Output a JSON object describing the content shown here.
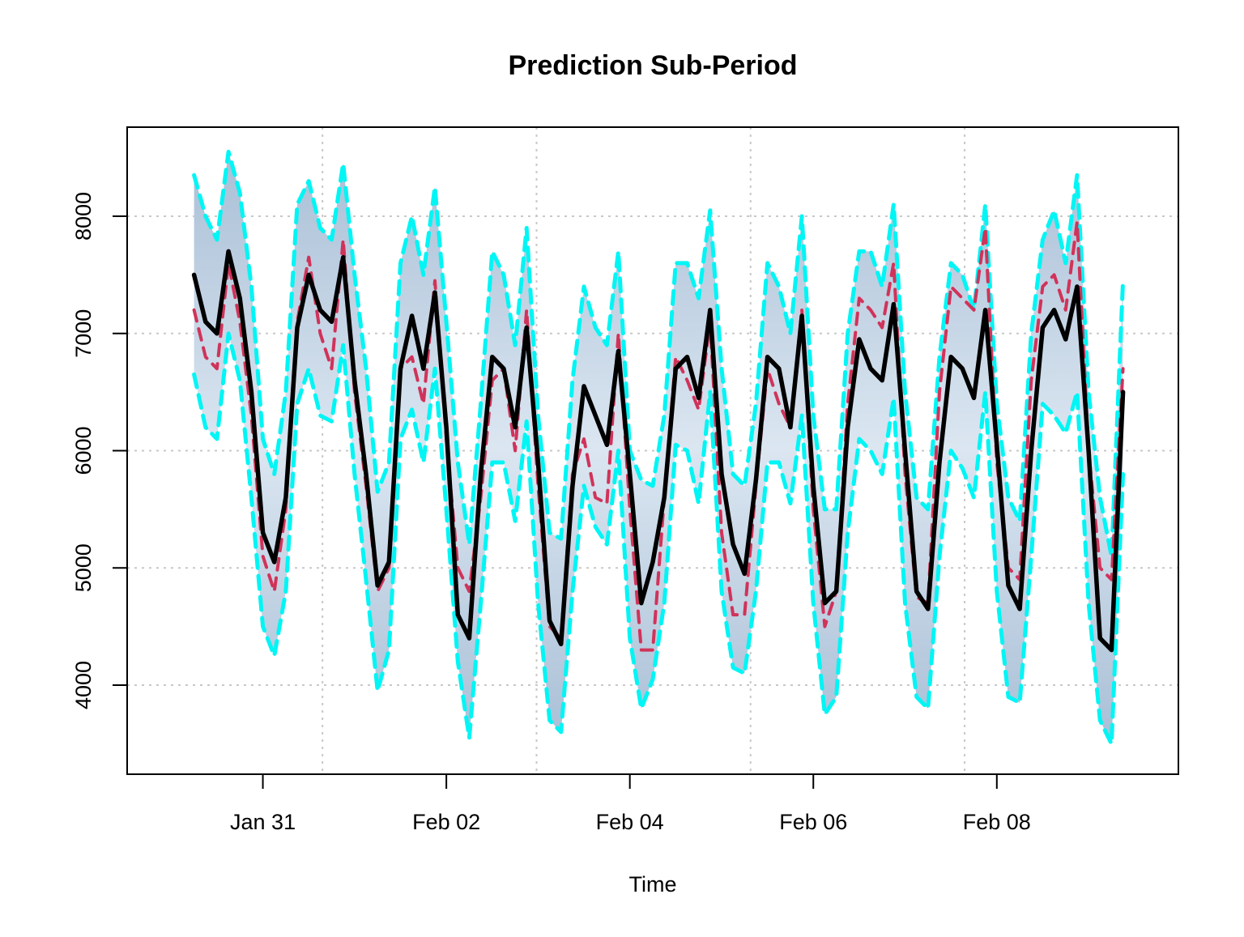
{
  "chart_data": {
    "type": "line",
    "title": "Prediction Sub-Period",
    "xlabel": "Time",
    "ylabel": "",
    "x_tick_labels": [
      "Jan 31",
      "Feb 02",
      "Feb 04",
      "Feb 06",
      "Feb 08"
    ],
    "x_tick_dates": [
      "2016-01-31",
      "2016-02-02",
      "2016-02-04",
      "2016-02-06",
      "2016-02-08"
    ],
    "y_ticks": [
      4000,
      5000,
      6000,
      7000,
      8000
    ],
    "ylim": [
      3240,
      8760
    ],
    "xlim": [
      "2016-01-29 12:30",
      "2016-02-09 23:30"
    ],
    "grid": true,
    "colors": {
      "actual": "#000000",
      "predicted": "#d0335a",
      "bounds": "#00f5f5",
      "band_outer": "#a9bfd6",
      "band_inner": "#dbe6f1",
      "grid": "#c8c8c8"
    },
    "series": [
      {
        "role": "actual",
        "style": "solid",
        "x": [
          "2016-01-30 06:00",
          "2016-01-30 09:00",
          "2016-01-30 12:00",
          "2016-01-30 15:00",
          "2016-01-30 18:00",
          "2016-01-30 21:00",
          "2016-01-31 00:00",
          "2016-01-31 03:00",
          "2016-01-31 06:00",
          "2016-01-31 09:00",
          "2016-01-31 12:00",
          "2016-01-31 15:00",
          "2016-01-31 18:00",
          "2016-01-31 21:00",
          "2016-02-01 00:00",
          "2016-02-01 03:00",
          "2016-02-01 06:00",
          "2016-02-01 09:00",
          "2016-02-01 12:00",
          "2016-02-01 15:00",
          "2016-02-01 18:00",
          "2016-02-01 21:00",
          "2016-02-02 00:00",
          "2016-02-02 03:00",
          "2016-02-02 06:00",
          "2016-02-02 09:00",
          "2016-02-02 12:00",
          "2016-02-02 15:00",
          "2016-02-02 18:00",
          "2016-02-02 21:00",
          "2016-02-03 00:00",
          "2016-02-03 03:00",
          "2016-02-03 06:00",
          "2016-02-03 09:00",
          "2016-02-03 12:00",
          "2016-02-03 15:00",
          "2016-02-03 18:00",
          "2016-02-03 21:00",
          "2016-02-04 00:00",
          "2016-02-04 03:00",
          "2016-02-04 06:00",
          "2016-02-04 09:00",
          "2016-02-04 12:00",
          "2016-02-04 15:00",
          "2016-02-04 18:00",
          "2016-02-04 21:00",
          "2016-02-05 00:00",
          "2016-02-05 03:00",
          "2016-02-05 06:00",
          "2016-02-05 09:00",
          "2016-02-05 12:00",
          "2016-02-05 15:00",
          "2016-02-05 18:00",
          "2016-02-05 21:00",
          "2016-02-06 00:00",
          "2016-02-06 03:00",
          "2016-02-06 06:00",
          "2016-02-06 09:00",
          "2016-02-06 12:00",
          "2016-02-06 15:00",
          "2016-02-06 18:00",
          "2016-02-06 21:00",
          "2016-02-07 00:00",
          "2016-02-07 03:00",
          "2016-02-07 06:00",
          "2016-02-07 09:00",
          "2016-02-07 12:00",
          "2016-02-07 15:00",
          "2016-02-07 18:00",
          "2016-02-07 21:00",
          "2016-02-08 00:00",
          "2016-02-08 03:00",
          "2016-02-08 06:00",
          "2016-02-08 09:00",
          "2016-02-08 12:00",
          "2016-02-08 15:00",
          "2016-02-08 18:00",
          "2016-02-08 21:00",
          "2016-02-09 00:00",
          "2016-02-09 03:00",
          "2016-02-09 06:00",
          "2016-02-09 09:00"
        ],
        "y": [
          7500,
          7100,
          7000,
          7700,
          7300,
          6500,
          5300,
          5050,
          5600,
          7050,
          7500,
          7200,
          7100,
          7650,
          6600,
          5800,
          4850,
          5050,
          6700,
          7150,
          6700,
          7350,
          6200,
          4600,
          4400,
          5800,
          6800,
          6700,
          6200,
          7050,
          5900,
          4550,
          4350,
          5700,
          6550,
          6300,
          6050,
          6850,
          5800,
          4700,
          5050,
          5600,
          6700,
          6800,
          6450,
          7200,
          5800,
          5200,
          4950,
          5750,
          6800,
          6700,
          6200,
          7150,
          5700,
          4700,
          4800,
          6200,
          6950,
          6700,
          6600,
          7250,
          6000,
          4800,
          4650,
          5900,
          6800,
          6700,
          6450,
          7200,
          6050,
          4850,
          4650,
          6000,
          7050,
          7200,
          6950,
          7400,
          6000,
          4400,
          4300,
          6500
        ]
      },
      {
        "role": "predicted",
        "style": "dashed",
        "x": [
          "2016-01-30 06:00",
          "2016-01-30 09:00",
          "2016-01-30 12:00",
          "2016-01-30 15:00",
          "2016-01-30 18:00",
          "2016-01-30 21:00",
          "2016-01-31 00:00",
          "2016-01-31 03:00",
          "2016-01-31 06:00",
          "2016-01-31 09:00",
          "2016-01-31 12:00",
          "2016-01-31 15:00",
          "2016-01-31 18:00",
          "2016-01-31 21:00",
          "2016-02-01 00:00",
          "2016-02-01 03:00",
          "2016-02-01 06:00",
          "2016-02-01 09:00",
          "2016-02-01 12:00",
          "2016-02-01 15:00",
          "2016-02-01 18:00",
          "2016-02-01 21:00",
          "2016-02-02 00:00",
          "2016-02-02 03:00",
          "2016-02-02 06:00",
          "2016-02-02 09:00",
          "2016-02-02 12:00",
          "2016-02-02 15:00",
          "2016-02-02 18:00",
          "2016-02-02 21:00",
          "2016-02-03 00:00",
          "2016-02-03 03:00",
          "2016-02-03 06:00",
          "2016-02-03 09:00",
          "2016-02-03 12:00",
          "2016-02-03 15:00",
          "2016-02-03 18:00",
          "2016-02-03 21:00",
          "2016-02-04 00:00",
          "2016-02-04 03:00",
          "2016-02-04 06:00",
          "2016-02-04 09:00",
          "2016-02-04 12:00",
          "2016-02-04 15:00",
          "2016-02-04 18:00",
          "2016-02-04 21:00",
          "2016-02-05 00:00",
          "2016-02-05 03:00",
          "2016-02-05 06:00",
          "2016-02-05 09:00",
          "2016-02-05 12:00",
          "2016-02-05 15:00",
          "2016-02-05 18:00",
          "2016-02-05 21:00",
          "2016-02-06 00:00",
          "2016-02-06 03:00",
          "2016-02-06 06:00",
          "2016-02-06 09:00",
          "2016-02-06 12:00",
          "2016-02-06 15:00",
          "2016-02-06 18:00",
          "2016-02-06 21:00",
          "2016-02-07 00:00",
          "2016-02-07 03:00",
          "2016-02-07 06:00",
          "2016-02-07 09:00",
          "2016-02-07 12:00",
          "2016-02-07 15:00",
          "2016-02-07 18:00",
          "2016-02-07 21:00",
          "2016-02-08 00:00",
          "2016-02-08 03:00",
          "2016-02-08 06:00",
          "2016-02-08 09:00",
          "2016-02-08 12:00",
          "2016-02-08 15:00",
          "2016-02-08 18:00",
          "2016-02-08 21:00",
          "2016-02-09 00:00",
          "2016-02-09 03:00",
          "2016-02-09 06:00",
          "2016-02-09 09:00"
        ],
        "y": [
          7200,
          6800,
          6700,
          7600,
          7100,
          6300,
          5100,
          4800,
          5500,
          7100,
          7650,
          7000,
          6700,
          7800,
          6500,
          5700,
          4800,
          5000,
          6700,
          6800,
          6400,
          7450,
          6100,
          5000,
          4800,
          5600,
          6600,
          6700,
          6000,
          7200,
          5700,
          4500,
          4400,
          5800,
          6100,
          5600,
          5550,
          7000,
          5500,
          4300,
          4300,
          5600,
          6800,
          6600,
          6350,
          7100,
          5300,
          4600,
          4600,
          5700,
          6700,
          6400,
          6200,
          7200,
          5500,
          4500,
          4800,
          6400,
          7300,
          7200,
          7050,
          7600,
          5800,
          4750,
          4700,
          6500,
          7400,
          7300,
          7200,
          7900,
          5900,
          5000,
          4900,
          6600,
          7400,
          7500,
          7200,
          7950,
          6000,
          5000,
          4900,
          6700
        ]
      },
      {
        "role": "upper_bound",
        "style": "dashed",
        "x": [
          "2016-01-30 06:00",
          "2016-01-30 09:00",
          "2016-01-30 12:00",
          "2016-01-30 15:00",
          "2016-01-30 18:00",
          "2016-01-30 21:00",
          "2016-01-31 00:00",
          "2016-01-31 03:00",
          "2016-01-31 06:00",
          "2016-01-31 09:00",
          "2016-01-31 12:00",
          "2016-01-31 15:00",
          "2016-01-31 18:00",
          "2016-01-31 21:00",
          "2016-02-01 00:00",
          "2016-02-01 03:00",
          "2016-02-01 06:00",
          "2016-02-01 09:00",
          "2016-02-01 12:00",
          "2016-02-01 15:00",
          "2016-02-01 18:00",
          "2016-02-01 21:00",
          "2016-02-02 00:00",
          "2016-02-02 03:00",
          "2016-02-02 06:00",
          "2016-02-02 09:00",
          "2016-02-02 12:00",
          "2016-02-02 15:00",
          "2016-02-02 18:00",
          "2016-02-02 21:00",
          "2016-02-03 00:00",
          "2016-02-03 03:00",
          "2016-02-03 06:00",
          "2016-02-03 09:00",
          "2016-02-03 12:00",
          "2016-02-03 15:00",
          "2016-02-03 18:00",
          "2016-02-03 21:00",
          "2016-02-04 00:00",
          "2016-02-04 03:00",
          "2016-02-04 06:00",
          "2016-02-04 09:00",
          "2016-02-04 12:00",
          "2016-02-04 15:00",
          "2016-02-04 18:00",
          "2016-02-04 21:00",
          "2016-02-05 00:00",
          "2016-02-05 03:00",
          "2016-02-05 06:00",
          "2016-02-05 09:00",
          "2016-02-05 12:00",
          "2016-02-05 15:00",
          "2016-02-05 18:00",
          "2016-02-05 21:00",
          "2016-02-06 00:00",
          "2016-02-06 03:00",
          "2016-02-06 06:00",
          "2016-02-06 09:00",
          "2016-02-06 12:00",
          "2016-02-06 15:00",
          "2016-02-06 18:00",
          "2016-02-06 21:00",
          "2016-02-07 00:00",
          "2016-02-07 03:00",
          "2016-02-07 06:00",
          "2016-02-07 09:00",
          "2016-02-07 12:00",
          "2016-02-07 15:00",
          "2016-02-07 18:00",
          "2016-02-07 21:00",
          "2016-02-08 00:00",
          "2016-02-08 03:00",
          "2016-02-08 06:00",
          "2016-02-08 09:00",
          "2016-02-08 12:00",
          "2016-02-08 15:00",
          "2016-02-08 18:00",
          "2016-02-08 21:00",
          "2016-02-09 00:00",
          "2016-02-09 03:00",
          "2016-02-09 06:00",
          "2016-02-09 09:00"
        ],
        "y": [
          8350,
          8000,
          7800,
          8550,
          8200,
          7400,
          6100,
          5800,
          6500,
          8100,
          8300,
          7900,
          7800,
          8450,
          7500,
          6700,
          5650,
          5900,
          7600,
          8000,
          7500,
          8250,
          7100,
          5900,
          5200,
          6400,
          7700,
          7500,
          6900,
          7900,
          6300,
          5300,
          5250,
          6600,
          7400,
          7050,
          6900,
          7700,
          6000,
          5750,
          5700,
          6300,
          7600,
          7600,
          7300,
          8050,
          6700,
          5800,
          5700,
          6400,
          7600,
          7400,
          7000,
          8000,
          6300,
          5500,
          5500,
          7000,
          7700,
          7700,
          7400,
          8100,
          6500,
          5600,
          5500,
          6800,
          7600,
          7500,
          7200,
          8100,
          6400,
          5600,
          5400,
          7000,
          7800,
          8050,
          7600,
          8350,
          6500,
          5600,
          5100,
          7450
        ]
      },
      {
        "role": "lower_bound",
        "style": "dashed",
        "x": [
          "2016-01-30 06:00",
          "2016-01-30 09:00",
          "2016-01-30 12:00",
          "2016-01-30 15:00",
          "2016-01-30 18:00",
          "2016-01-30 21:00",
          "2016-01-31 00:00",
          "2016-01-31 03:00",
          "2016-01-31 06:00",
          "2016-01-31 09:00",
          "2016-01-31 12:00",
          "2016-01-31 15:00",
          "2016-01-31 18:00",
          "2016-01-31 21:00",
          "2016-02-01 00:00",
          "2016-02-01 03:00",
          "2016-02-01 06:00",
          "2016-02-01 09:00",
          "2016-02-01 12:00",
          "2016-02-01 15:00",
          "2016-02-01 18:00",
          "2016-02-01 21:00",
          "2016-02-02 00:00",
          "2016-02-02 03:00",
          "2016-02-02 06:00",
          "2016-02-02 09:00",
          "2016-02-02 12:00",
          "2016-02-02 15:00",
          "2016-02-02 18:00",
          "2016-02-02 21:00",
          "2016-02-03 00:00",
          "2016-02-03 03:00",
          "2016-02-03 06:00",
          "2016-02-03 09:00",
          "2016-02-03 12:00",
          "2016-02-03 15:00",
          "2016-02-03 18:00",
          "2016-02-03 21:00",
          "2016-02-04 00:00",
          "2016-02-04 03:00",
          "2016-02-04 06:00",
          "2016-02-04 09:00",
          "2016-02-04 12:00",
          "2016-02-04 15:00",
          "2016-02-04 18:00",
          "2016-02-04 21:00",
          "2016-02-05 00:00",
          "2016-02-05 03:00",
          "2016-02-05 06:00",
          "2016-02-05 09:00",
          "2016-02-05 12:00",
          "2016-02-05 15:00",
          "2016-02-05 18:00",
          "2016-02-05 21:00",
          "2016-02-06 00:00",
          "2016-02-06 03:00",
          "2016-02-06 06:00",
          "2016-02-06 09:00",
          "2016-02-06 12:00",
          "2016-02-06 15:00",
          "2016-02-06 18:00",
          "2016-02-06 21:00",
          "2016-02-07 00:00",
          "2016-02-07 03:00",
          "2016-02-07 06:00",
          "2016-02-07 09:00",
          "2016-02-07 12:00",
          "2016-02-07 15:00",
          "2016-02-07 18:00",
          "2016-02-07 21:00",
          "2016-02-08 00:00",
          "2016-02-08 03:00",
          "2016-02-08 06:00",
          "2016-02-08 09:00",
          "2016-02-08 12:00",
          "2016-02-08 15:00",
          "2016-02-08 18:00",
          "2016-02-08 21:00",
          "2016-02-09 00:00",
          "2016-02-09 03:00",
          "2016-02-09 06:00",
          "2016-02-09 09:00"
        ],
        "y": [
          6650,
          6200,
          6100,
          7000,
          6600,
          5600,
          4500,
          4250,
          4800,
          6400,
          6700,
          6300,
          6250,
          6900,
          5800,
          4900,
          3950,
          4300,
          6100,
          6350,
          5900,
          6700,
          5500,
          4200,
          3550,
          4700,
          5900,
          5900,
          5400,
          6250,
          4700,
          3700,
          3600,
          4800,
          5700,
          5350,
          5200,
          6000,
          4400,
          3800,
          4050,
          4700,
          6050,
          6000,
          5550,
          6500,
          4800,
          4150,
          4100,
          4800,
          5900,
          5900,
          5550,
          6300,
          4700,
          3750,
          3900,
          5300,
          6100,
          6000,
          5800,
          6450,
          4700,
          3900,
          3800,
          5100,
          6000,
          5850,
          5600,
          6500,
          4800,
          3900,
          3850,
          5100,
          6400,
          6300,
          6150,
          6500,
          4700,
          3700,
          3500,
          5800
        ]
      }
    ]
  }
}
